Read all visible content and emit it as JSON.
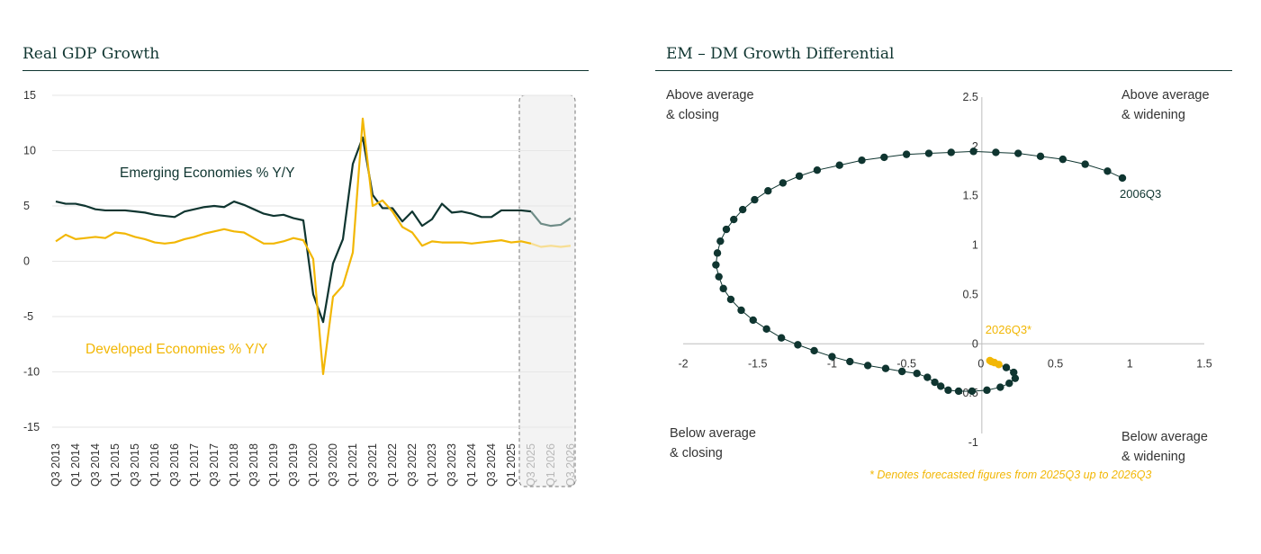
{
  "colors": {
    "em": "#0f3530",
    "dm": "#f2b705",
    "forecast_em": "#6f8c87",
    "forecast_dm": "#f7de94",
    "grid": "#e6e6e6",
    "forecast_box": "#f3f3f3"
  },
  "chart_data": [
    {
      "type": "line",
      "title": "Real GDP Growth",
      "ylim": [
        -15,
        15
      ],
      "yticks": [
        "15",
        "10",
        "5",
        "0",
        "-5",
        "-10",
        "-15"
      ],
      "xticks": [
        "Q3 2013",
        "Q1 2014",
        "Q3 2014",
        "Q1 2015",
        "Q3 2015",
        "Q1 2016",
        "Q3 2016",
        "Q1 2017",
        "Q3 2017",
        "Q1 2018",
        "Q3 2018",
        "Q1 2019",
        "Q3 2019",
        "Q1 2020",
        "Q3 2020",
        "Q1 2021",
        "Q3 2021",
        "Q1 2022",
        "Q3 2022",
        "Q1 2023",
        "Q3 2023",
        "Q1 2024",
        "Q3 2024",
        "Q1 2025",
        "Q3 2025",
        "Q1 2026",
        "Q3 2026"
      ],
      "forecast_from_index": 48,
      "series": [
        {
          "name": "Emerging Economies % Y/Y",
          "values": [
            5.4,
            5.2,
            5.2,
            5.0,
            4.7,
            4.6,
            4.6,
            4.6,
            4.5,
            4.4,
            4.2,
            4.1,
            4.0,
            4.5,
            4.7,
            4.9,
            5.0,
            4.9,
            5.4,
            5.1,
            4.7,
            4.3,
            4.1,
            4.2,
            3.9,
            3.7,
            -3.0,
            -5.5,
            -0.2,
            2.0,
            8.8,
            11.2,
            6.0,
            4.8,
            4.8,
            3.6,
            4.5,
            3.2,
            3.8,
            5.2,
            4.4,
            4.5,
            4.3,
            4.0,
            4.0,
            4.6,
            4.6,
            4.6,
            4.5,
            3.4,
            3.2,
            3.3,
            3.9
          ]
        },
        {
          "name": "Developed Economies % Y/Y",
          "values": [
            1.8,
            2.4,
            2.0,
            2.1,
            2.2,
            2.1,
            2.6,
            2.5,
            2.2,
            2.0,
            1.7,
            1.6,
            1.7,
            2.0,
            2.2,
            2.5,
            2.7,
            2.9,
            2.7,
            2.6,
            2.1,
            1.6,
            1.6,
            1.8,
            2.1,
            1.9,
            0.2,
            -10.2,
            -3.2,
            -2.2,
            0.8,
            12.9,
            5.0,
            5.5,
            4.5,
            3.1,
            2.6,
            1.4,
            1.8,
            1.7,
            1.7,
            1.7,
            1.6,
            1.7,
            1.8,
            1.9,
            1.7,
            1.8,
            1.6,
            1.3,
            1.4,
            1.3,
            1.4
          ]
        }
      ]
    },
    {
      "type": "scatter",
      "title": "EM – DM Growth Differential",
      "xlim": [
        -2,
        1.5
      ],
      "ylim": [
        -1,
        2.5
      ],
      "xticks": [
        "-2",
        "-1.5",
        "-1",
        "-0.5",
        "0",
        "0.5",
        "1",
        "1.5"
      ],
      "yticks": [
        "2.5",
        "2",
        "1.5",
        "1",
        "0.5",
        "0",
        "-0.5",
        "-1"
      ],
      "quadrant_labels": {
        "top_left": [
          "Above average",
          "& closing"
        ],
        "top_right": [
          "Above average",
          "& widening"
        ],
        "bottom_left": [
          "Below average",
          "& closing"
        ],
        "bottom_right": [
          "Below average",
          "& widening"
        ]
      },
      "start_label": "2006Q3",
      "end_label": "2026Q3*",
      "footnote": "* Denotes forecasted figures from 2025Q3 up to 2026Q3",
      "points": [
        [
          0.95,
          1.68
        ],
        [
          0.85,
          1.75
        ],
        [
          0.7,
          1.82
        ],
        [
          0.55,
          1.87
        ],
        [
          0.4,
          1.9
        ],
        [
          0.25,
          1.93
        ],
        [
          0.1,
          1.94
        ],
        [
          -0.05,
          1.95
        ],
        [
          -0.2,
          1.94
        ],
        [
          -0.35,
          1.93
        ],
        [
          -0.5,
          1.92
        ],
        [
          -0.65,
          1.89
        ],
        [
          -0.8,
          1.86
        ],
        [
          -0.95,
          1.81
        ],
        [
          -1.1,
          1.76
        ],
        [
          -1.22,
          1.7
        ],
        [
          -1.33,
          1.63
        ],
        [
          -1.43,
          1.55
        ],
        [
          -1.52,
          1.46
        ],
        [
          -1.6,
          1.36
        ],
        [
          -1.66,
          1.26
        ],
        [
          -1.71,
          1.16
        ],
        [
          -1.75,
          1.04
        ],
        [
          -1.77,
          0.92
        ],
        [
          -1.78,
          0.8
        ],
        [
          -1.76,
          0.68
        ],
        [
          -1.73,
          0.56
        ],
        [
          -1.68,
          0.45
        ],
        [
          -1.61,
          0.34
        ],
        [
          -1.53,
          0.24
        ],
        [
          -1.44,
          0.15
        ],
        [
          -1.34,
          0.06
        ],
        [
          -1.23,
          -0.01
        ],
        [
          -1.12,
          -0.07
        ],
        [
          -1.0,
          -0.13
        ],
        [
          -0.88,
          -0.18
        ],
        [
          -0.76,
          -0.22
        ],
        [
          -0.64,
          -0.25
        ],
        [
          -0.53,
          -0.28
        ],
        [
          -0.43,
          -0.3
        ],
        [
          -0.36,
          -0.34
        ],
        [
          -0.31,
          -0.39
        ],
        [
          -0.27,
          -0.43
        ],
        [
          -0.22,
          -0.47
        ],
        [
          -0.15,
          -0.48
        ],
        [
          -0.06,
          -0.48
        ],
        [
          0.04,
          -0.47
        ],
        [
          0.13,
          -0.44
        ],
        [
          0.19,
          -0.4
        ],
        [
          0.23,
          -0.35
        ],
        [
          0.22,
          -0.29
        ],
        [
          0.17,
          -0.24
        ],
        [
          0.12,
          -0.21
        ],
        [
          0.09,
          -0.19
        ],
        [
          0.07,
          -0.18
        ],
        [
          0.06,
          -0.17
        ]
      ],
      "forecast_from_index": 52
    }
  ]
}
